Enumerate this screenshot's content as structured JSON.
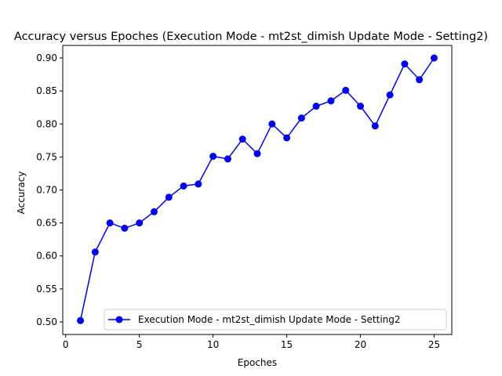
{
  "chart_data": {
    "type": "line",
    "title": "Accuracy versus Epoches (Execution Mode - mt2st_dimish Update Mode - Setting2)",
    "xlabel": "Epoches",
    "ylabel": "Accuracy",
    "xlim": [
      -0.2,
      26.2
    ],
    "ylim": [
      0.481,
      0.919
    ],
    "xticks": [
      0,
      5,
      10,
      15,
      20,
      25
    ],
    "xtick_labels": [
      "0",
      "5",
      "10",
      "15",
      "20",
      "25"
    ],
    "yticks": [
      0.5,
      0.55,
      0.6,
      0.65,
      0.7,
      0.75,
      0.8,
      0.85,
      0.9
    ],
    "ytick_labels": [
      "0.50",
      "0.55",
      "0.60",
      "0.65",
      "0.70",
      "0.75",
      "0.80",
      "0.85",
      "0.90"
    ],
    "grid": false,
    "legend_position": "lower-right",
    "series": [
      {
        "name": "Execution Mode - mt2st_dimish Update Mode - Setting2",
        "color": "#0000ff",
        "marker": "circle",
        "x": [
          1,
          2,
          3,
          4,
          5,
          6,
          7,
          8,
          9,
          10,
          11,
          12,
          13,
          14,
          15,
          16,
          17,
          18,
          19,
          20,
          21,
          22,
          23,
          24,
          25
        ],
        "values": [
          0.502,
          0.606,
          0.65,
          0.642,
          0.65,
          0.667,
          0.689,
          0.706,
          0.709,
          0.751,
          0.747,
          0.777,
          0.755,
          0.8,
          0.779,
          0.809,
          0.827,
          0.835,
          0.851,
          0.827,
          0.797,
          0.844,
          0.891,
          0.867,
          0.9
        ]
      }
    ]
  }
}
